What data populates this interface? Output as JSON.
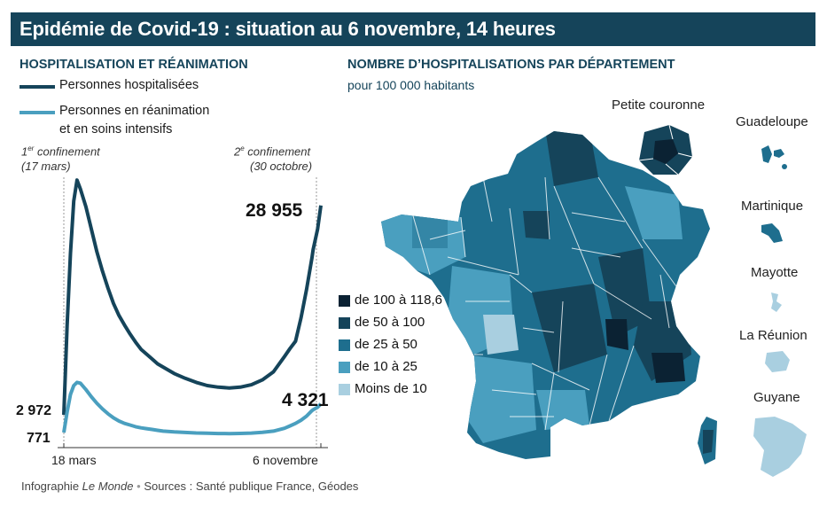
{
  "title": "Epidémie de Covid-19 : situation au 6 novembre, 14 heures",
  "left_chart": {
    "header": "HOSPITALISATION ET RÉANIMATION",
    "legend": [
      {
        "label": "Personnes hospitalisées",
        "color": "#15445a"
      },
      {
        "label_line1": "Personnes en réanimation",
        "label_line2": "et en soins intensifs",
        "color": "#4a9fbf"
      }
    ],
    "annotations": {
      "first_lockdown_sup": "er",
      "first_lockdown_pre": "1",
      "first_lockdown_word": " confinement",
      "first_lockdown_date": "(17 mars)",
      "second_lockdown_pre": "2",
      "second_lockdown_sup": "e",
      "second_lockdown_word": " confinement",
      "second_lockdown_date": "(30 octobre)"
    },
    "value_labels": {
      "hosp_start": "2 972",
      "icu_start": "771",
      "hosp_end": "28 955",
      "icu_end": "4 321"
    },
    "x_ticks": [
      "18 mars",
      "6 novembre"
    ]
  },
  "chart_data": {
    "type": "line",
    "title": "HOSPITALISATION ET RÉANIMATION",
    "x": [
      0,
      3,
      6,
      9,
      12,
      15,
      20,
      25,
      30,
      35,
      40,
      45,
      50,
      55,
      60,
      65,
      70,
      75,
      80,
      85,
      90,
      100,
      110,
      120,
      130,
      140,
      150,
      160,
      170,
      180,
      190,
      200,
      205,
      210,
      215,
      220,
      225,
      226,
      230,
      233
    ],
    "series": [
      {
        "name": "Personnes hospitalisées",
        "values": [
          2972,
          14000,
          23000,
          29500,
          32100,
          31000,
          28800,
          26000,
          23200,
          20800,
          18700,
          16800,
          15300,
          14100,
          13000,
          12000,
          11100,
          10500,
          9900,
          9300,
          8900,
          8100,
          7500,
          7000,
          6600,
          6400,
          6300,
          6400,
          6700,
          7300,
          8300,
          10200,
          11200,
          12100,
          15000,
          18500,
          22500,
          23500,
          26000,
          28955
        ]
      },
      {
        "name": "Personnes en réanimation et en soins intensifs",
        "values": [
          771,
          3300,
          5500,
          6600,
          7000,
          6900,
          6100,
          5200,
          4400,
          3700,
          3100,
          2600,
          2200,
          1900,
          1700,
          1500,
          1350,
          1250,
          1150,
          1050,
          950,
          850,
          780,
          720,
          680,
          650,
          640,
          660,
          700,
          800,
          950,
          1300,
          1600,
          1900,
          2300,
          2800,
          3500,
          3600,
          3900,
          4321
        ]
      }
    ],
    "x_tick_labels": [
      "18 mars",
      "6 novembre"
    ],
    "markers": [
      "1er confinement (17 mars)",
      "2e confinement (30 octobre)"
    ],
    "ylim": [
      0,
      33000
    ],
    "grid": false
  },
  "right_map": {
    "header": "NOMBRE D’HOSPITALISATIONS PAR DÉPARTEMENT",
    "subheader": "pour 100 000 habitants",
    "inset_label": "Petite couronne",
    "overseas": [
      "Guadeloupe",
      "Martinique",
      "Mayotte",
      "La Réunion",
      "Guyane"
    ],
    "scale": [
      {
        "label": "de 100 à 118,6",
        "color": "#0b2233"
      },
      {
        "label": "de 50 à 100",
        "color": "#15445a"
      },
      {
        "label": "de 25 à 50",
        "color": "#1e6e8e"
      },
      {
        "label": "de 10 à 25",
        "color": "#4a9fbf"
      },
      {
        "label": "Moins de 10",
        "color": "#a9cfe0"
      }
    ]
  },
  "source": {
    "prefix": "Infographie ",
    "brand": "Le Monde",
    "sep": "•",
    "text": "Sources : Santé publique France, Géodes"
  }
}
